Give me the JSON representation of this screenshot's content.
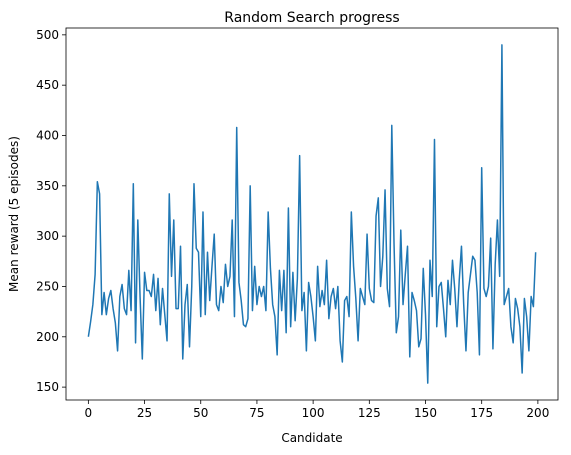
{
  "chart_data": {
    "type": "line",
    "title": "Random Search progress",
    "x_label": "Candidate",
    "y_label": "Mean reward (5 episodes)",
    "x": [
      0,
      1,
      2,
      3,
      4,
      5,
      6,
      7,
      8,
      9,
      10,
      11,
      12,
      13,
      14,
      15,
      16,
      17,
      18,
      19,
      20,
      21,
      22,
      23,
      24,
      25,
      26,
      27,
      28,
      29,
      30,
      31,
      32,
      33,
      34,
      35,
      36,
      37,
      38,
      39,
      40,
      41,
      42,
      43,
      44,
      45,
      46,
      47,
      48,
      49,
      50,
      51,
      52,
      53,
      54,
      55,
      56,
      57,
      58,
      59,
      60,
      61,
      62,
      63,
      64,
      65,
      66,
      67,
      68,
      69,
      70,
      71,
      72,
      73,
      74,
      75,
      76,
      77,
      78,
      79,
      80,
      81,
      82,
      83,
      84,
      85,
      86,
      87,
      88,
      89,
      90,
      91,
      92,
      93,
      94,
      95,
      96,
      97,
      98,
      99,
      100,
      101,
      102,
      103,
      104,
      105,
      106,
      107,
      108,
      109,
      110,
      111,
      112,
      113,
      114,
      115,
      116,
      117,
      118,
      119,
      120,
      121,
      122,
      123,
      124,
      125,
      126,
      127,
      128,
      129,
      130,
      131,
      132,
      133,
      134,
      135,
      136,
      137,
      138,
      139,
      140,
      141,
      142,
      143,
      144,
      145,
      146,
      147,
      148,
      149,
      150,
      151,
      152,
      153,
      154,
      155,
      156,
      157,
      158,
      159,
      160,
      161,
      162,
      163,
      164,
      165,
      166,
      167,
      168,
      169,
      170,
      171,
      172,
      173,
      174,
      175,
      176,
      177,
      178,
      179,
      180,
      181,
      182,
      183,
      184,
      185,
      186,
      187,
      188,
      189,
      190,
      191,
      192,
      193,
      194,
      195,
      196,
      197,
      198,
      199
    ],
    "series": [
      {
        "name": "Mean reward",
        "color": "#1f77b4",
        "values": [
          200,
          215,
          232,
          262,
          354,
          342,
          222,
          244,
          222,
          238,
          246,
          228,
          214,
          186,
          240,
          252,
          228,
          222,
          266,
          226,
          352,
          194,
          316,
          240,
          178,
          264,
          246,
          246,
          240,
          262,
          226,
          258,
          212,
          248,
          222,
          196,
          342,
          260,
          316,
          228,
          228,
          290,
          178,
          232,
          252,
          190,
          250,
          352,
          288,
          284,
          220,
          324,
          222,
          284,
          236,
          270,
          302,
          232,
          226,
          250,
          234,
          272,
          250,
          260,
          316,
          220,
          408,
          254,
          236,
          212,
          210,
          218,
          350,
          226,
          270,
          232,
          250,
          240,
          250,
          226,
          324,
          268,
          232,
          220,
          182,
          266,
          226,
          266,
          204,
          328,
          210,
          264,
          216,
          258,
          380,
          226,
          244,
          186,
          254,
          240,
          220,
          196,
          270,
          230,
          246,
          232,
          276,
          218,
          240,
          248,
          228,
          250,
          196,
          175,
          236,
          240,
          220,
          324,
          270,
          238,
          196,
          248,
          240,
          232,
          302,
          248,
          236,
          234,
          320,
          338,
          250,
          280,
          346,
          248,
          230,
          410,
          292,
          204,
          220,
          306,
          232,
          262,
          290,
          180,
          244,
          236,
          226,
          190,
          198,
          268,
          222,
          154,
          276,
          240,
          396,
          210,
          250,
          254,
          228,
          200,
          256,
          232,
          276,
          248,
          210,
          256,
          290,
          232,
          186,
          244,
          262,
          280,
          276,
          244,
          182,
          368,
          248,
          240,
          250,
          298,
          188,
          272,
          316,
          260,
          490,
          232,
          240,
          248,
          210,
          194,
          238,
          228,
          210,
          164,
          238,
          220,
          186,
          240,
          230,
          284
        ]
      }
    ],
    "xlim": [
      -9.95,
      208.95
    ],
    "ylim": [
      137.2,
      506.8
    ],
    "xticks": [
      0,
      25,
      50,
      75,
      100,
      125,
      150,
      175,
      200
    ],
    "yticks": [
      150,
      200,
      250,
      300,
      350,
      400,
      450,
      500
    ]
  }
}
